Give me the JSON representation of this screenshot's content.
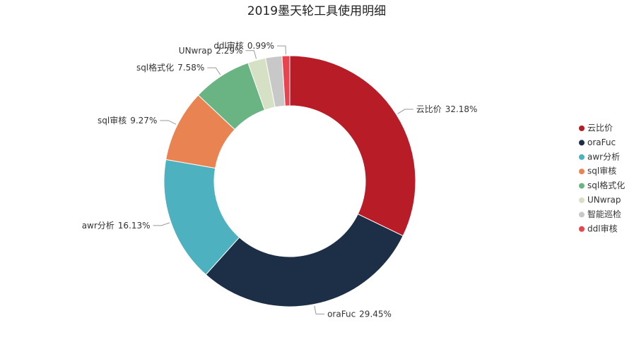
{
  "chart_data": {
    "type": "donut",
    "title": "2019墨天轮工具使用明细",
    "categories": [
      "云比价",
      "oraFuc",
      "awr分析",
      "sql审核",
      "sql格式化",
      "UNwrap",
      "智能巡检",
      "ddl审核"
    ],
    "values": [
      32.18,
      29.45,
      16.13,
      9.27,
      7.58,
      2.29,
      2.11,
      0.99
    ],
    "value_labels": [
      "32.18%",
      "29.45%",
      "16.13%",
      "9.27%",
      "7.58%",
      "2.29%",
      null,
      "0.99%"
    ],
    "colors": [
      "#b71c27",
      "#1d2f47",
      "#4db1bf",
      "#e98352",
      "#6ab382",
      "#d5e0c5",
      "#c8c8c8",
      "#e8444f"
    ],
    "legend": "right"
  }
}
